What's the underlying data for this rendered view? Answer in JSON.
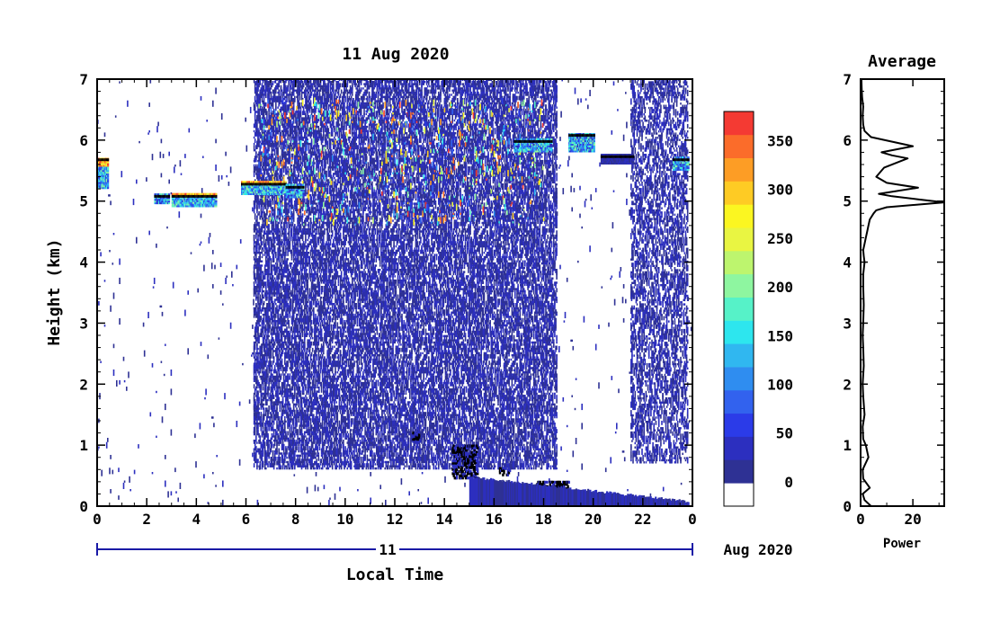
{
  "chart_data": [
    {
      "type": "heatmap",
      "title": "11 Aug 2020",
      "xlabel": "Local Time",
      "ylabel": "Height (km)",
      "xlim": [
        0,
        24
      ],
      "ylim": [
        0,
        7
      ],
      "x_ticks": [
        "0",
        "2",
        "4",
        "6",
        "8",
        "10",
        "12",
        "14",
        "16",
        "18",
        "20",
        "22",
        "0"
      ],
      "y_ticks": [
        "0",
        "1",
        "2",
        "3",
        "4",
        "5",
        "6",
        "7"
      ],
      "date_bar_label": "11",
      "date_suffix": "Aug 2020",
      "colorbar": {
        "ticks": [
          "0",
          "50",
          "100",
          "150",
          "200",
          "250",
          "300",
          "350"
        ],
        "min": -25,
        "max": 380,
        "colors": [
          "#ffffff",
          "#2e3194",
          "#2c2fbf",
          "#2b3be8",
          "#3262ee",
          "#2f8df0",
          "#30b7f0",
          "#2de6ee",
          "#56f2c8",
          "#8ef6a0",
          "#bdf56e",
          "#e9f542",
          "#fbf621",
          "#fecb24",
          "#fd9d25",
          "#fb6c2a",
          "#f43a33"
        ]
      },
      "layers": [
        {
          "kind": "noise",
          "x_range": [
            6.3,
            18.5
          ],
          "y_range": [
            0.6,
            7.0
          ],
          "density": 0.45,
          "level": "low"
        },
        {
          "kind": "noise",
          "x_range": [
            21.5,
            23.8
          ],
          "y_range": [
            0.7,
            7.0
          ],
          "density": 0.32,
          "level": "low"
        },
        {
          "kind": "noise",
          "x_range": [
            6.5,
            18.0
          ],
          "y_range": [
            4.6,
            6.6
          ],
          "density": 0.05,
          "level": "mixed"
        },
        {
          "kind": "sparse",
          "x_range": [
            0,
            24
          ],
          "y_range": [
            0,
            7
          ],
          "density": 0.006,
          "level": "low"
        }
      ],
      "cloud_layers": [
        {
          "x": [
            0.0,
            0.4
          ],
          "y": [
            5.2,
            5.7
          ],
          "level": "high"
        },
        {
          "x": [
            2.3,
            2.9
          ],
          "y": [
            4.95,
            5.1
          ],
          "level": "mid"
        },
        {
          "x": [
            3.0,
            4.8
          ],
          "y": [
            4.9,
            5.1
          ],
          "level": "high"
        },
        {
          "x": [
            5.8,
            7.6
          ],
          "y": [
            5.1,
            5.3
          ],
          "level": "high"
        },
        {
          "x": [
            7.6,
            8.3
          ],
          "y": [
            5.05,
            5.25
          ],
          "level": "mid"
        },
        {
          "x": [
            16.8,
            18.3
          ],
          "y": [
            5.8,
            6.0
          ],
          "level": "mid"
        },
        {
          "x": [
            19.0,
            20.0
          ],
          "y": [
            5.8,
            6.1
          ],
          "level": "mid"
        },
        {
          "x": [
            20.3,
            21.6
          ],
          "y": [
            5.6,
            5.75
          ],
          "level": "low"
        },
        {
          "x": [
            23.2,
            23.8
          ],
          "y": [
            5.5,
            5.7
          ],
          "level": "mid"
        }
      ],
      "low_clouds": [
        {
          "x": [
            12.7,
            13.0
          ],
          "y": [
            1.05,
            1.2
          ]
        },
        {
          "x": [
            14.3,
            15.3
          ],
          "y": [
            0.45,
            1.0
          ]
        },
        {
          "x": [
            16.2,
            16.6
          ],
          "y": [
            0.5,
            0.62
          ]
        },
        {
          "x": [
            17.7,
            19.0
          ],
          "y": [
            0.1,
            0.4
          ]
        }
      ],
      "surface_layer": {
        "x": [
          15.0,
          23.8
        ],
        "y_top_start": 0.45,
        "y_top_end": 0.05
      }
    },
    {
      "type": "line",
      "title": "Average",
      "xlabel": "Power",
      "xlim": [
        0,
        32
      ],
      "ylim": [
        0,
        7
      ],
      "x_ticks": [
        "0",
        "20"
      ],
      "y_ticks": [
        "0",
        "1",
        "2",
        "3",
        "4",
        "5",
        "6",
        "7"
      ],
      "series": [
        {
          "x": [
            4.0,
            1.5,
            0.8,
            3.5,
            1.0,
            0.8,
            3.0,
            2.0,
            1.0,
            0.8,
            1.5,
            1.0,
            0.8,
            1.2,
            1.0,
            0.8,
            1.0,
            1.2,
            1.0,
            1.0,
            1.5,
            1.2,
            1.0,
            1.5,
            2.0,
            2.5,
            3.0,
            3.5,
            5.0,
            6.0,
            10.0,
            32.0,
            22.0,
            12.0,
            7.0,
            22.0,
            10.0,
            6.0,
            9.0,
            18.0,
            12.0,
            8.0,
            20.0,
            4.0,
            1.5,
            1.0,
            0.8,
            1.0,
            0.6,
            0.4,
            0.3
          ],
          "y": [
            0.0,
            0.1,
            0.2,
            0.3,
            0.45,
            0.6,
            0.8,
            1.0,
            1.1,
            1.3,
            1.5,
            1.8,
            2.0,
            2.3,
            2.6,
            2.8,
            3.0,
            3.3,
            3.6,
            3.8,
            4.0,
            4.1,
            4.2,
            4.3,
            4.4,
            4.5,
            4.6,
            4.7,
            4.8,
            4.85,
            4.9,
            4.98,
            5.03,
            5.08,
            5.12,
            5.22,
            5.3,
            5.4,
            5.55,
            5.7,
            5.75,
            5.8,
            5.9,
            6.05,
            6.15,
            6.25,
            6.4,
            6.55,
            6.7,
            6.85,
            7.0
          ]
        }
      ]
    }
  ]
}
